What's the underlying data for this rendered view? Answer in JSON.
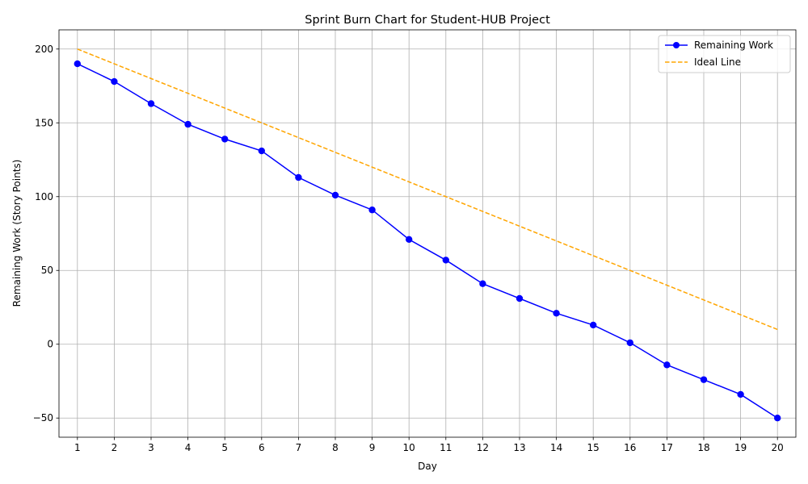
{
  "chart_data": {
    "type": "line",
    "title": "Sprint Burn Chart for Student-HUB Project",
    "xlabel": "Day",
    "ylabel": "Remaining Work (Story Points)",
    "x": [
      1,
      2,
      3,
      4,
      5,
      6,
      7,
      8,
      9,
      10,
      11,
      12,
      13,
      14,
      15,
      16,
      17,
      18,
      19,
      20
    ],
    "xlim": [
      0.5,
      20.5
    ],
    "ylim": [
      -63,
      213
    ],
    "yticks": [
      -50,
      0,
      50,
      100,
      150,
      200
    ],
    "grid": true,
    "legend_position": "top-right",
    "series": [
      {
        "name": "Remaining Work",
        "color": "#0000ff",
        "style": "solid",
        "marker": "circle",
        "values": [
          190,
          178,
          163,
          149,
          139,
          131,
          113,
          101,
          91,
          71,
          57,
          41,
          31,
          21,
          13,
          1,
          -14,
          -24,
          -34,
          -50
        ]
      },
      {
        "name": "Ideal Line",
        "color": "#ffa500",
        "style": "dashed",
        "marker": "none",
        "values": [
          200,
          190,
          180,
          170,
          160,
          150,
          140,
          130,
          120,
          110,
          100,
          90,
          80,
          70,
          60,
          50,
          40,
          30,
          20,
          10
        ]
      }
    ]
  }
}
